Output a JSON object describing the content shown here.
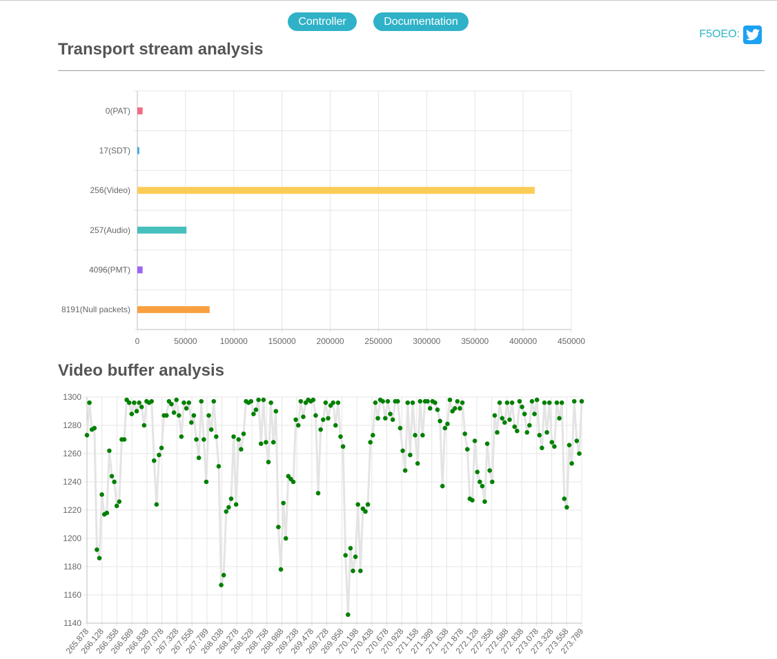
{
  "nav": {
    "controller_label": "Controller",
    "documentation_label": "Documentation"
  },
  "social": {
    "twitter_label": "F5OEO:",
    "icon": "twitter-icon"
  },
  "sections": {
    "ts_title": "Transport stream analysis",
    "vb_title": "Video buffer analysis"
  },
  "chart_data": [
    {
      "type": "bar",
      "orientation": "horizontal",
      "categories": [
        "0(PAT)",
        "17(SDT)",
        "256(Video)",
        "257(Audio)",
        "4096(PMT)",
        "8191(Null packets)"
      ],
      "values": [
        5500,
        2000,
        412000,
        51000,
        5500,
        75000
      ],
      "colors": [
        "#f26b85",
        "#3ea8de",
        "#fccd56",
        "#46bfbd",
        "#9b66f2",
        "#f9a03f"
      ],
      "xlim": [
        0,
        450000
      ],
      "xticks": [
        0,
        50000,
        100000,
        150000,
        200000,
        250000,
        300000,
        350000,
        400000,
        450000
      ],
      "grid": true,
      "legend": "none"
    },
    {
      "type": "line",
      "line_color": "#e4e4e4",
      "point_color": "#008000",
      "ylim": [
        1140,
        1300
      ],
      "yticks": [
        1140,
        1160,
        1180,
        1200,
        1220,
        1240,
        1260,
        1280,
        1300
      ],
      "x_tick_labels": [
        "265.878",
        "266.128",
        "266.358",
        "266.589",
        "266.838",
        "267.078",
        "267.328",
        "267.558",
        "267.789",
        "268.038",
        "268.278",
        "268.528",
        "268.758",
        "268.988",
        "269.238",
        "269.478",
        "269.728",
        "269.958",
        "270.198",
        "270.438",
        "270.678",
        "270.928",
        "271.158",
        "271.389",
        "271.638",
        "271.878",
        "272.128",
        "272.358",
        "272.588",
        "272.838",
        "273.078",
        "273.328",
        "273.558",
        "273.789"
      ],
      "grid": true,
      "legend": "none",
      "values": [
        1273,
        1296,
        1277,
        1278,
        1192,
        1186,
        1231,
        1217,
        1218,
        1262,
        1244,
        1240,
        1223,
        1226,
        1270,
        1270,
        1298,
        1296,
        1288,
        1296,
        1290,
        1296,
        1293,
        1280,
        1297,
        1296,
        1297,
        1255,
        1224,
        1259,
        1264,
        1287,
        1287,
        1297,
        1295,
        1289,
        1298,
        1287,
        1272,
        1296,
        1292,
        1296,
        1282,
        1287,
        1270,
        1257,
        1297,
        1270,
        1240,
        1287,
        1277,
        1297,
        1272,
        1251,
        1167,
        1174,
        1219,
        1222,
        1228,
        1272,
        1224,
        1270,
        1263,
        1274,
        1297,
        1296,
        1297,
        1288,
        1291,
        1298,
        1267,
        1298,
        1268,
        1254,
        1296,
        1268,
        1290,
        1208,
        1178,
        1225,
        1200,
        1244,
        1242,
        1240,
        1284,
        1280,
        1297,
        1286,
        1296,
        1298,
        1297,
        1298,
        1287,
        1232,
        1277,
        1284,
        1296,
        1285,
        1294,
        1296,
        1280,
        1296,
        1272,
        1265,
        1188,
        1146,
        1193,
        1177,
        1187,
        1224,
        1177,
        1221,
        1219,
        1224,
        1268,
        1273,
        1296,
        1285,
        1298,
        1297,
        1285,
        1297,
        1288,
        1284,
        1297,
        1297,
        1278,
        1262,
        1248,
        1296,
        1259,
        1296,
        1273,
        1253,
        1297,
        1273,
        1297,
        1297,
        1292,
        1297,
        1296,
        1291,
        1283,
        1237,
        1278,
        1281,
        1298,
        1290,
        1292,
        1297,
        1292,
        1296,
        1274,
        1263,
        1228,
        1227,
        1269,
        1247,
        1240,
        1237,
        1226,
        1267,
        1248,
        1240,
        1287,
        1275,
        1296,
        1285,
        1282,
        1296,
        1284,
        1296,
        1279,
        1276,
        1297,
        1293,
        1288,
        1275,
        1280,
        1297,
        1288,
        1298,
        1273,
        1264,
        1296,
        1275,
        1296,
        1268,
        1265,
        1296,
        1285,
        1296,
        1228,
        1222,
        1266,
        1253,
        1297,
        1269,
        1260,
        1297
      ]
    }
  ]
}
